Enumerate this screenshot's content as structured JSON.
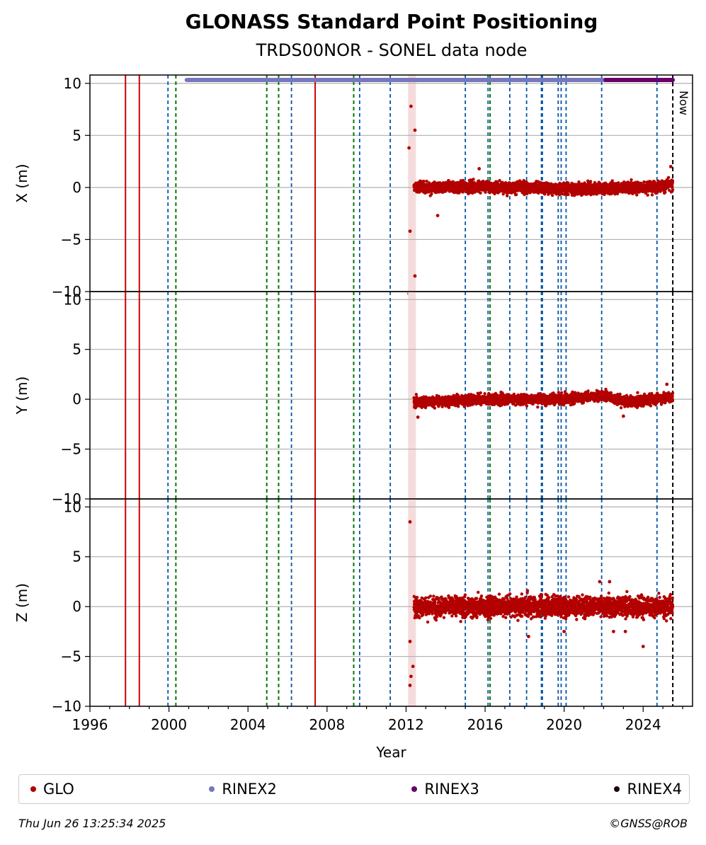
{
  "title": "GLONASS Standard Point Positioning",
  "subtitle": "TRDS00NOR - SONEL data node",
  "footer": {
    "timestamp": "Thu Jun 26 13:25:34 2025",
    "credit": "©GNSS@ROB"
  },
  "now_label": "Now",
  "colors": {
    "glo": "#b30000",
    "rinex2": "#7777bb",
    "rinex3": "#6a0066",
    "rinex4": "#220011",
    "red_event": "#cc0000",
    "green_event": "#007700",
    "blue_event": "#0055aa",
    "grid": "#b0b0b0",
    "highlight": "#f5dcdc"
  },
  "legend": [
    {
      "label": "GLO",
      "color": "#b30000"
    },
    {
      "label": "RINEX2",
      "color": "#7777bb"
    },
    {
      "label": "RINEX3",
      "color": "#6a0066"
    },
    {
      "label": "RINEX4",
      "color": "#220011"
    }
  ],
  "chart_data": {
    "type": "scatter",
    "xlabel": "Year",
    "xlim": [
      1996,
      2026.5
    ],
    "xticks": [
      1996,
      2000,
      2004,
      2008,
      2012,
      2016,
      2020,
      2024
    ],
    "ylim": [
      -10,
      10.8
    ],
    "yticks": [
      -10,
      -5,
      0,
      5,
      10
    ],
    "grid": "horizontal",
    "legend_position": "bottom",
    "panels": [
      {
        "ylabel": "X (m)",
        "spread": 0.75,
        "mean": [
          [
            2012.5,
            0
          ],
          [
            2016,
            0.1
          ],
          [
            2020,
            -0.1
          ],
          [
            2024,
            0
          ],
          [
            2025.3,
            0.2
          ]
        ],
        "outliers": [
          [
            2012.25,
            7.8
          ],
          [
            2012.45,
            5.5
          ],
          [
            2012.15,
            3.8
          ],
          [
            2012.2,
            -4.2
          ],
          [
            2012.45,
            -8.5
          ],
          [
            2012.15,
            -10.2
          ],
          [
            2013.6,
            -2.7
          ],
          [
            2015.7,
            1.8
          ],
          [
            2025.4,
            2
          ]
        ]
      },
      {
        "ylabel": "Y (m)",
        "spread": 0.7,
        "mean": [
          [
            2012.5,
            -0.3
          ],
          [
            2016,
            0
          ],
          [
            2020,
            0
          ],
          [
            2022,
            0.4
          ],
          [
            2023.2,
            -0.3
          ],
          [
            2025.4,
            0.2
          ]
        ],
        "outliers": [
          [
            2012.6,
            -1.8
          ],
          [
            2023,
            -1.7
          ],
          [
            2025.2,
            1.5
          ]
        ]
      },
      {
        "ylabel": "Z (m)",
        "spread": 1.4,
        "mean": [
          [
            2012.5,
            0
          ],
          [
            2025.5,
            0
          ]
        ],
        "outliers": [
          [
            2012.2,
            8.5
          ],
          [
            2012.2,
            -3.5
          ],
          [
            2012.35,
            -6
          ],
          [
            2012.25,
            -7
          ],
          [
            2012.2,
            -7.9
          ],
          [
            2018.2,
            -3
          ],
          [
            2020,
            -2.5
          ],
          [
            2021.8,
            2.5
          ],
          [
            2022.5,
            -2.5
          ],
          [
            2023.1,
            -2.5
          ],
          [
            2024,
            -4
          ],
          [
            2022.3,
            2.5
          ]
        ]
      }
    ],
    "series": [
      {
        "name": "GLO",
        "x_range": [
          2012.4,
          2025.5
        ]
      },
      {
        "name": "RINEX2",
        "x_range": [
          2000.9,
          2022.1
        ]
      },
      {
        "name": "RINEX3",
        "x_range": [
          2022.1,
          2025.5
        ]
      }
    ],
    "highlight_span": [
      2012.1,
      2012.5
    ],
    "events": {
      "red_solid": [
        1997.8,
        1998.5,
        2007.4
      ],
      "green_dashed": [
        2000.35,
        2004.95,
        2005.55,
        2009.35,
        2016.25
      ],
      "blue_dashed": [
        1999.95,
        2006.2,
        2009.65,
        2011.2,
        2015.0,
        2016.15,
        2017.25,
        2018.1,
        2018.85,
        2018.9,
        2019.7,
        2019.85,
        2020.1,
        2021.9,
        2024.7
      ],
      "now": 2025.5
    }
  }
}
